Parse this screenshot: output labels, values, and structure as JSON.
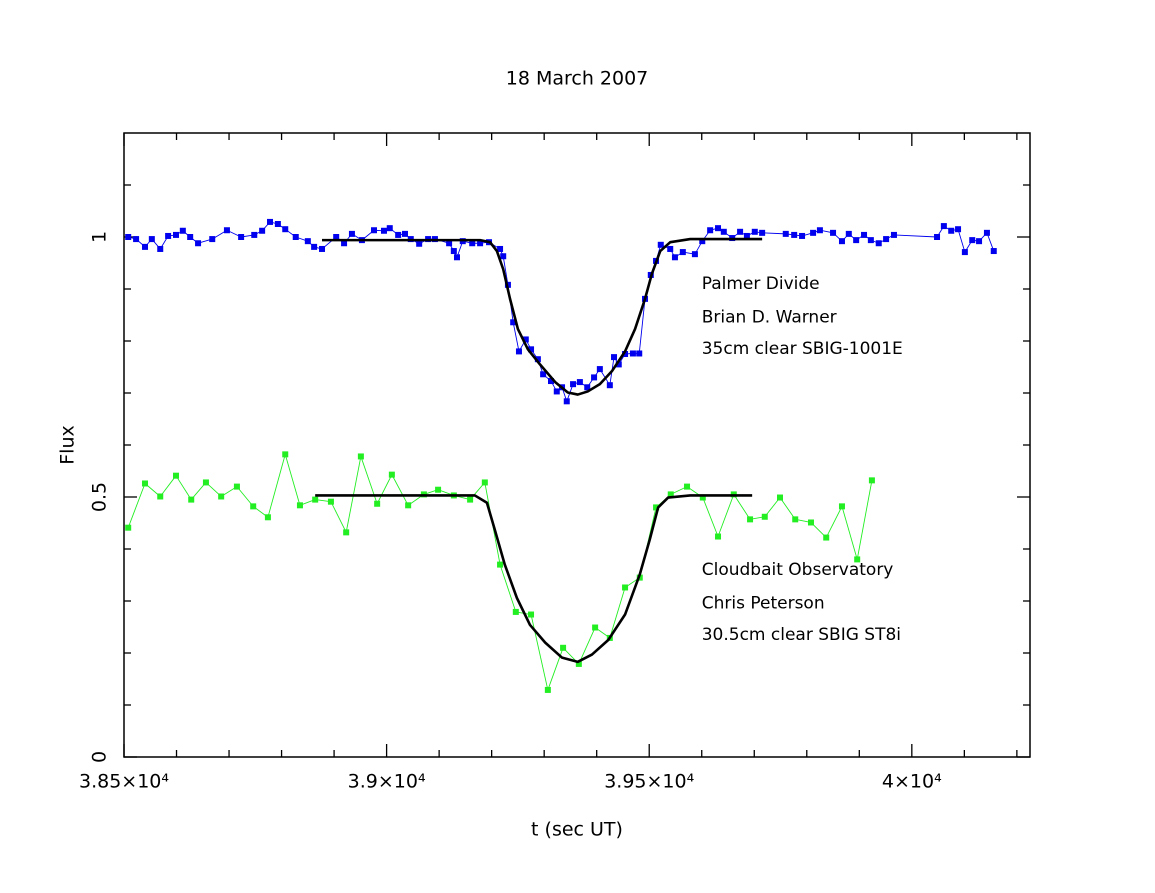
{
  "chart_data": {
    "type": "line",
    "title": "18 March 2007",
    "xlabel": "t (sec UT)",
    "ylabel": "Flux",
    "xlim": [
      38500,
      40225
    ],
    "ylim": [
      0,
      1.2
    ],
    "xticks": [
      {
        "value": 38500,
        "label": "3.85×10⁴"
      },
      {
        "value": 39000,
        "label": "3.9×10⁴"
      },
      {
        "value": 39500,
        "label": "3.95×10⁴"
      },
      {
        "value": 40000,
        "label": "4×10⁴"
      }
    ],
    "yticks": [
      0,
      0.5,
      1
    ],
    "minor_xticks": [
      38600,
      38700,
      38800,
      38900,
      39100,
      39200,
      39300,
      39400,
      39600,
      39700,
      39800,
      39900,
      40100,
      40200
    ],
    "minor_yticks": [
      0.1,
      0.2,
      0.3,
      0.4,
      0.6,
      0.7,
      0.8,
      0.9,
      1.1
    ],
    "annotations": [
      {
        "text": "Palmer Divide",
        "x": 39600,
        "y": 0.91
      },
      {
        "text": "Brian D. Warner",
        "x": 39600,
        "y": 0.845
      },
      {
        "text": "35cm clear SBIG-1001E",
        "x": 39600,
        "y": 0.785
      },
      {
        "text": "Cloudbait Observatory",
        "x": 39600,
        "y": 0.36
      },
      {
        "text": "Chris Peterson",
        "x": 39600,
        "y": 0.295
      },
      {
        "text": "30.5cm clear SBIG ST8i",
        "x": 39600,
        "y": 0.235
      }
    ],
    "series": [
      {
        "color": "#0000ee",
        "markers": true,
        "x": [
          38508,
          38523,
          38540,
          38553,
          38569,
          38584,
          38599,
          38612,
          38626,
          38641,
          38668,
          38696,
          38723,
          38748,
          38763,
          38778,
          38793,
          38807,
          38827,
          38850,
          38862,
          38877,
          38904,
          38919,
          38934,
          38953,
          38976,
          38995,
          39006,
          39022,
          39035,
          39046,
          39062,
          39079,
          39092,
          39119,
          39128,
          39134,
          39145,
          39163,
          39178,
          39195,
          39216,
          39222,
          39231,
          39241,
          39252,
          39265,
          39275,
          39288,
          39298,
          39313,
          39324,
          39334,
          39343,
          39355,
          39368,
          39382,
          39395,
          39406,
          39425,
          39433,
          39442,
          39454,
          39469,
          39481,
          39492,
          39503,
          39513,
          39522,
          39540,
          39549,
          39564,
          39587,
          39601,
          39616,
          39631,
          39642,
          39658,
          39673,
          39686,
          39701,
          39715,
          39760,
          39776,
          39791,
          39812,
          39825,
          39850,
          39867,
          39880,
          39894,
          39909,
          39922,
          39937,
          39951,
          39966,
          40048,
          40061,
          40075,
          40088,
          40101,
          40115,
          40128,
          40143,
          40156
        ],
        "values": [
          1.0,
          0.996,
          0.981,
          0.996,
          0.977,
          1.002,
          1.004,
          1.012,
          1.0,
          0.988,
          0.996,
          1.013,
          1.0,
          1.004,
          1.012,
          1.029,
          1.025,
          1.015,
          1.0,
          0.992,
          0.981,
          0.977,
          1.0,
          0.988,
          1.006,
          0.994,
          1.013,
          1.012,
          1.017,
          1.004,
          1.006,
          0.996,
          0.987,
          0.996,
          0.996,
          0.988,
          0.973,
          0.961,
          0.992,
          0.988,
          0.988,
          0.99,
          0.977,
          0.963,
          0.908,
          0.836,
          0.78,
          0.803,
          0.784,
          0.765,
          0.736,
          0.723,
          0.703,
          0.711,
          0.684,
          0.717,
          0.721,
          0.711,
          0.73,
          0.746,
          0.715,
          0.769,
          0.755,
          0.775,
          0.776,
          0.776,
          0.881,
          0.927,
          0.954,
          0.985,
          0.977,
          0.961,
          0.971,
          0.967,
          0.992,
          1.013,
          1.017,
          1.01,
          0.998,
          1.01,
          1.002,
          1.01,
          1.008,
          1.006,
          1.004,
          1.002,
          1.008,
          1.013,
          1.008,
          0.992,
          1.006,
          0.994,
          1.004,
          0.994,
          0.988,
          0.996,
          1.004,
          1.0,
          1.021,
          1.012,
          1.015,
          0.971,
          0.994,
          0.992,
          1.008,
          0.973
        ]
      },
      {
        "color": "#000000",
        "markers": false,
        "x": [
          38877,
          39178,
          39197,
          39210,
          39222,
          39235,
          39250,
          39269,
          39292,
          39321,
          39345,
          39364,
          39383,
          39406,
          39429,
          39454,
          39473,
          39492,
          39505,
          39521,
          39540,
          39578,
          39715
        ],
        "values": [
          0.994,
          0.994,
          0.99,
          0.973,
          0.938,
          0.881,
          0.823,
          0.784,
          0.755,
          0.721,
          0.701,
          0.697,
          0.703,
          0.717,
          0.742,
          0.78,
          0.823,
          0.881,
          0.929,
          0.973,
          0.99,
          0.996,
          0.996
        ]
      },
      {
        "color": "#22ee22",
        "markers": true,
        "x": [
          38508,
          38540,
          38569,
          38599,
          38628,
          38656,
          38685,
          38715,
          38746,
          38774,
          38807,
          38835,
          38864,
          38894,
          38923,
          38951,
          38982,
          39010,
          39041,
          39071,
          39098,
          39128,
          39159,
          39187,
          39216,
          39246,
          39275,
          39307,
          39336,
          39366,
          39397,
          39425,
          39454,
          39482,
          39513,
          39541,
          39572,
          39602,
          39631,
          39661,
          39692,
          39720,
          39749,
          39778,
          39808,
          39837,
          39867,
          39896,
          39924
        ],
        "values": [
          0.441,
          0.526,
          0.501,
          0.541,
          0.495,
          0.528,
          0.501,
          0.52,
          0.482,
          0.461,
          0.582,
          0.484,
          0.495,
          0.491,
          0.432,
          0.578,
          0.487,
          0.543,
          0.484,
          0.505,
          0.514,
          0.503,
          0.495,
          0.528,
          0.37,
          0.279,
          0.274,
          0.129,
          0.21,
          0.179,
          0.249,
          0.229,
          0.326,
          0.345,
          0.48,
          0.505,
          0.52,
          0.499,
          0.424,
          0.505,
          0.457,
          0.462,
          0.499,
          0.457,
          0.451,
          0.422,
          0.482,
          0.38,
          0.532
        ]
      },
      {
        "color": "#000000",
        "markers": false,
        "x": [
          38864,
          39168,
          39191,
          39206,
          39225,
          39248,
          39273,
          39302,
          39334,
          39364,
          39391,
          39422,
          39454,
          39482,
          39501,
          39517,
          39536,
          39578,
          39696
        ],
        "values": [
          0.503,
          0.503,
          0.489,
          0.437,
          0.37,
          0.306,
          0.254,
          0.22,
          0.191,
          0.183,
          0.197,
          0.225,
          0.274,
          0.351,
          0.418,
          0.48,
          0.499,
          0.503,
          0.503
        ]
      }
    ]
  }
}
